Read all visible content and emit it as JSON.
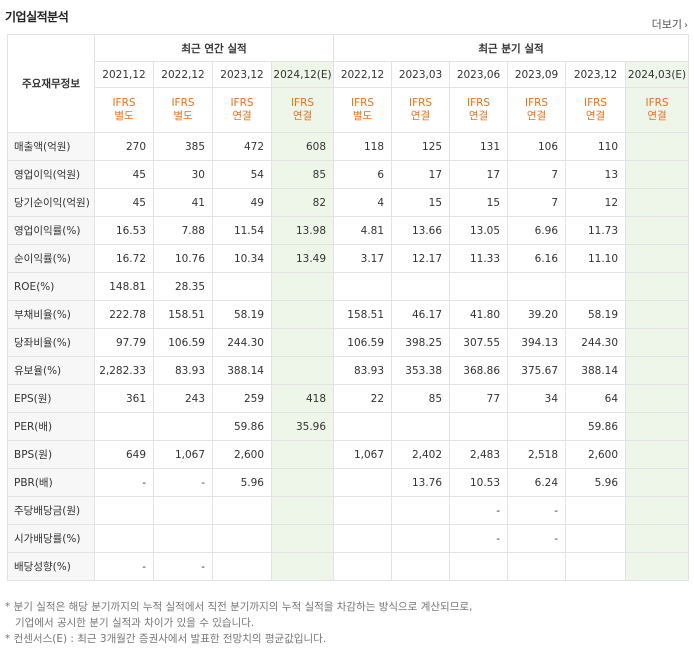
{
  "title": "기업실적분석",
  "more_link": "더보기",
  "header": {
    "label_col": "주요재무정보",
    "annual_group": "최근 연간 실적",
    "quarter_group": "최근 분기 실적",
    "annual_years": [
      "2021,12",
      "2022,12",
      "2023,12",
      "2024,12(E)"
    ],
    "quarter_years": [
      "2022,12",
      "2023,03",
      "2023,06",
      "2023,09",
      "2023,12",
      "2024,03(E)"
    ],
    "types": [
      [
        "IFRS",
        "별도"
      ],
      [
        "IFRS",
        "별도"
      ],
      [
        "IFRS",
        "연결"
      ],
      [
        "IFRS",
        "연결"
      ],
      [
        "IFRS",
        "별도"
      ],
      [
        "IFRS",
        "연결"
      ],
      [
        "IFRS",
        "연결"
      ],
      [
        "IFRS",
        "연결"
      ],
      [
        "IFRS",
        "연결"
      ],
      [
        "IFRS",
        "연결"
      ]
    ]
  },
  "rows": [
    {
      "label": "매출액(억원)",
      "values": [
        "270",
        "385",
        "472",
        "608",
        "118",
        "125",
        "131",
        "106",
        "110",
        ""
      ]
    },
    {
      "label": "영업이익(억원)",
      "values": [
        "45",
        "30",
        "54",
        "85",
        "6",
        "17",
        "17",
        "7",
        "13",
        ""
      ]
    },
    {
      "label": "당기순이익(억원)",
      "values": [
        "45",
        "41",
        "49",
        "82",
        "4",
        "15",
        "15",
        "7",
        "12",
        ""
      ]
    },
    {
      "label": "영업이익률(%)",
      "values": [
        "16.53",
        "7.88",
        "11.54",
        "13.98",
        "4.81",
        "13.66",
        "13.05",
        "6.96",
        "11.73",
        ""
      ]
    },
    {
      "label": "순이익률(%)",
      "values": [
        "16.72",
        "10.76",
        "10.34",
        "13.49",
        "3.17",
        "12.17",
        "11.33",
        "6.16",
        "11.10",
        ""
      ]
    },
    {
      "label": "ROE(%)",
      "values": [
        "148.81",
        "28.35",
        "",
        "",
        "",
        "",
        "",
        "",
        "",
        ""
      ]
    },
    {
      "label": "부채비율(%)",
      "values": [
        "222.78",
        "158.51",
        "58.19",
        "",
        "158.51",
        "46.17",
        "41.80",
        "39.20",
        "58.19",
        ""
      ]
    },
    {
      "label": "당좌비율(%)",
      "values": [
        "97.79",
        "106.59",
        "244.30",
        "",
        "106.59",
        "398.25",
        "307.55",
        "394.13",
        "244.30",
        ""
      ]
    },
    {
      "label": "유보율(%)",
      "values": [
        "2,282.33",
        "83.93",
        "388.14",
        "",
        "83.93",
        "353.38",
        "368.86",
        "375.67",
        "388.14",
        ""
      ]
    },
    {
      "label": "EPS(원)",
      "values": [
        "361",
        "243",
        "259",
        "418",
        "22",
        "85",
        "77",
        "34",
        "64",
        ""
      ]
    },
    {
      "label": "PER(배)",
      "values": [
        "",
        "",
        "59.86",
        "35.96",
        "",
        "",
        "",
        "",
        "59.86",
        ""
      ]
    },
    {
      "label": "BPS(원)",
      "values": [
        "649",
        "1,067",
        "2,600",
        "",
        "1,067",
        "2,402",
        "2,483",
        "2,518",
        "2,600",
        ""
      ]
    },
    {
      "label": "PBR(배)",
      "values": [
        "-",
        "-",
        "5.96",
        "",
        "",
        "13.76",
        "10.53",
        "6.24",
        "5.96",
        ""
      ]
    },
    {
      "label": "주당배당금(원)",
      "values": [
        "",
        "",
        "",
        "",
        "",
        "",
        "-",
        "-",
        "",
        ""
      ]
    },
    {
      "label": "시가배당률(%)",
      "values": [
        "",
        "",
        "",
        "",
        "",
        "",
        "-",
        "-",
        "",
        ""
      ]
    },
    {
      "label": "배당성향(%)",
      "values": [
        "-",
        "-",
        "",
        "",
        "",
        "",
        "",
        "",
        "",
        ""
      ]
    }
  ],
  "notes": [
    "* 분기 실적은 해당 분기까지의 누적 실적에서 직전 분기까지의 누적 실적을 차감하는 방식으로 계산되므로,",
    "기업에서 공시한 분기 실적과 차이가 있을 수 있습니다.",
    "* 컨센서스(E) : 최근 3개월간 증권사에서 발표한 전망치의 평균값입니다."
  ],
  "colors": {
    "ifrs": "#e2731f",
    "estimate_bg": "#eef6e9",
    "label_bg": "#f7f7f7"
  }
}
